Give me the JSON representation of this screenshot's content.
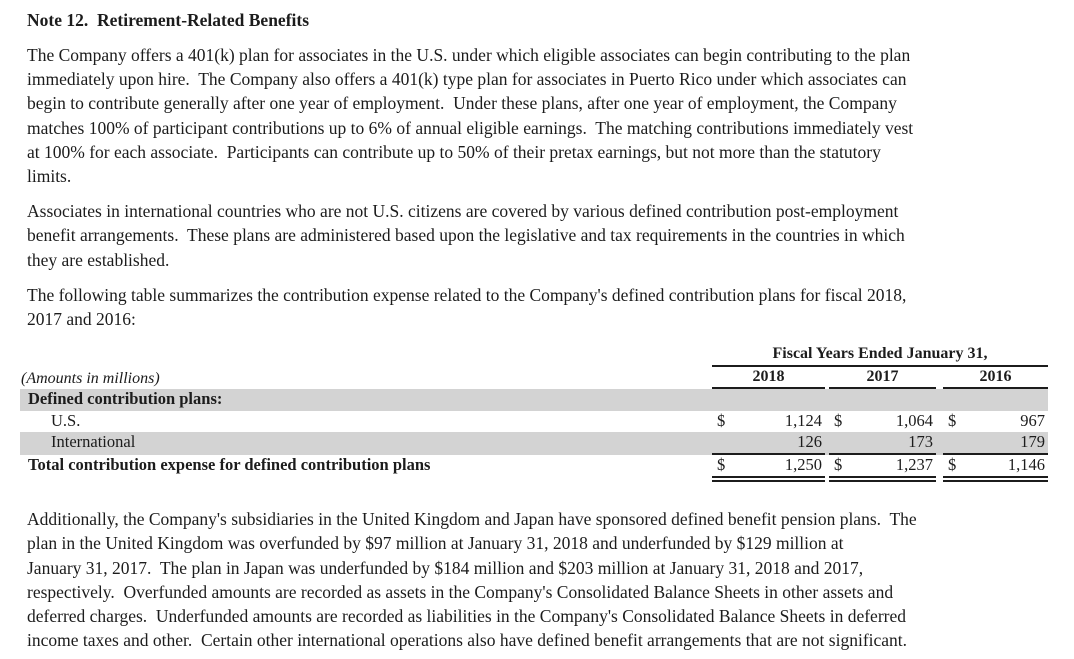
{
  "note": {
    "title": "Note 12.  Retirement-Related Benefits",
    "paragraph_401k": "The Company offers a 401(k) plan for associates in the U.S. under which eligible associates can begin contributing to the plan\nimmediately upon hire.  The Company also offers a 401(k) type plan for associates in Puerto Rico under which associates can\nbegin to contribute generally after one year of employment.  Under these plans, after one year of employment, the Company\nmatches 100% of participant contributions up to 6% of annual eligible earnings.  The matching contributions immediately vest\nat 100% for each associate.  Participants can contribute up to 50% of their pretax earnings, but not more than the statutory\nlimits.",
    "paragraph_international": "Associates in international countries who are not U.S. citizens are covered by various defined contribution post-employment\nbenefit arrangements.  These plans are administered based upon the legislative and tax requirements in the countries in which\nthey are established.",
    "paragraph_table_intro": "The following table summarizes the contribution expense related to the Company's defined contribution plans for fiscal 2018,\n2017 and 2016:",
    "paragraph_pension": "Additionally, the Company's subsidiaries in the United Kingdom and Japan have sponsored defined benefit pension plans.  The\nplan in the United Kingdom was overfunded by $97 million at January 31, 2018 and underfunded by $129 million at\nJanuary 31, 2017.  The plan in Japan was underfunded by $184 million and $203 million at January 31, 2018 and 2017,\nrespectively.  Overfunded amounts are recorded as assets in the Company's Consolidated Balance Sheets in other assets and\ndeferred charges.  Underfunded amounts are recorded as liabilities in the Company's Consolidated Balance Sheets in deferred\nincome taxes and other.  Certain other international operations also have defined benefit arrangements that are not significant."
  },
  "table": {
    "spanner_header": "Fiscal Years Ended January 31,",
    "amounts_note": "(Amounts in millions)",
    "years": [
      "2018",
      "2017",
      "2016"
    ],
    "dollar": "$",
    "rows": [
      {
        "label": "Defined contribution plans:"
      },
      {
        "label": "U.S.",
        "values": [
          "1,124",
          "1,064",
          "967"
        ]
      },
      {
        "label": "International",
        "values": [
          "126",
          "173",
          "179"
        ]
      },
      {
        "label": "Total contribution expense for defined contribution plans",
        "values": [
          "1,250",
          "1,237",
          "1,146"
        ]
      }
    ]
  },
  "chart_data": {
    "type": "table",
    "title": "Fiscal Years Ended January 31,",
    "units": "Amounts in millions",
    "categories": [
      "2018",
      "2017",
      "2016"
    ],
    "series": [
      {
        "name": "U.S.",
        "values": [
          1124,
          1064,
          967
        ]
      },
      {
        "name": "International",
        "values": [
          126,
          173,
          179
        ]
      },
      {
        "name": "Total contribution expense for defined contribution plans",
        "values": [
          1250,
          1237,
          1146
        ]
      }
    ]
  }
}
